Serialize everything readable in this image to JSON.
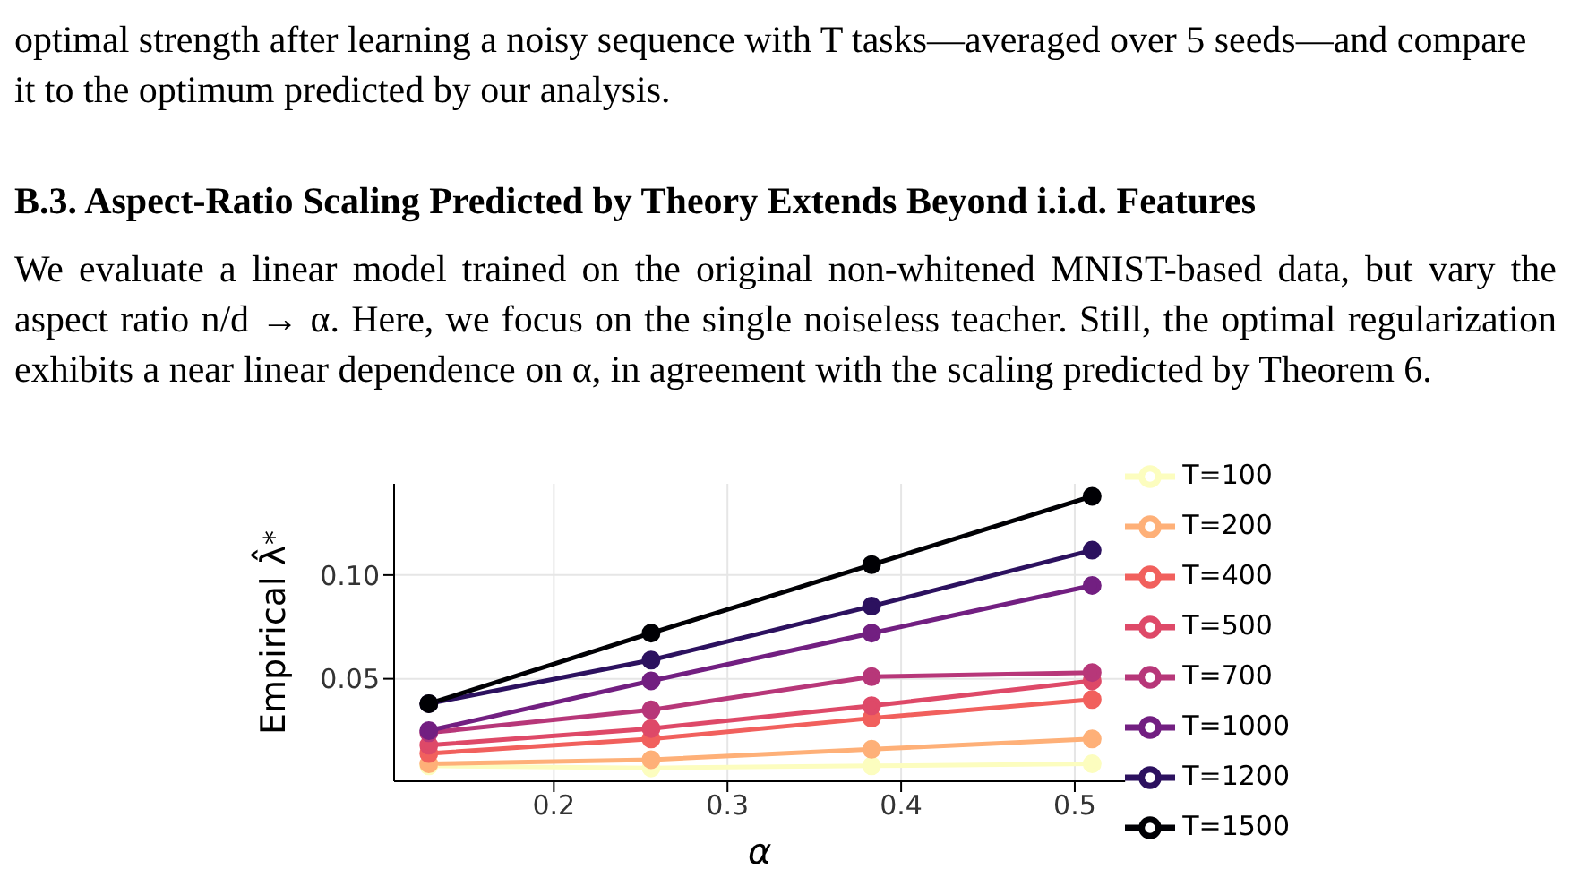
{
  "chart_data": {
    "type": "line",
    "title": "B.3.  Aspect-Ratio Scaling Predicted by Theory Extends Beyond i.i.d. Features",
    "subtitle": "We evaluate a linear model trained on the original non-whitened MNIST-based data, but vary the aspect ratio n/d → α. Here, we focus on the single noiseless teacher. Still, the optimal regularization exhibits a near linear dependence on α, in agreement with the scaling predicted by Theorem 6.",
    "annotations": [
      "optimal strength after learning a noisy sequence with T tasks—averaged over 5 seeds—and compare it to the optimum predicted by our analysis."
    ],
    "xlabel": "α",
    "ylabel": "Empirical λ̂$^{*}$",
    "x": [
      0.128,
      0.256,
      0.383,
      0.51
    ],
    "series": [
      {
        "name": "T=100",
        "color": "#fcfdbf",
        "values": [
          0.008,
          0.007,
          0.008,
          0.009
        ]
      },
      {
        "name": "T=200",
        "color": "#feb078",
        "values": [
          0.009,
          0.011,
          0.016,
          0.021
        ]
      },
      {
        "name": "T=400",
        "color": "#f1605d",
        "values": [
          0.014,
          0.021,
          0.031,
          0.04
        ]
      },
      {
        "name": "T=500",
        "color": "#de4968",
        "values": [
          0.018,
          0.026,
          0.037,
          0.049
        ]
      },
      {
        "name": "T=700",
        "color": "#b73779",
        "values": [
          0.024,
          0.035,
          0.051,
          0.053
        ]
      },
      {
        "name": "T=1000",
        "color": "#721f81",
        "values": [
          0.025,
          0.049,
          0.072,
          0.095
        ]
      },
      {
        "name": "T=1200",
        "color": "#2c115f",
        "values": [
          0.038,
          0.059,
          0.085,
          0.112
        ]
      },
      {
        "name": "T=1500",
        "color": "#000004",
        "values": [
          0.038,
          0.072,
          0.105,
          0.138
        ]
      }
    ],
    "xlim": [
      0.108,
      0.529
    ],
    "ylim": [
      0.0006,
      0.144
    ],
    "xticks": [
      0.2,
      0.3,
      0.4,
      0.5
    ],
    "yticks": [
      {
        "value": 0.05,
        "label": "0.05"
      },
      {
        "value": 0.1,
        "label": "0.10"
      }
    ],
    "grid": true,
    "legend": "right",
    "marker": "circle",
    "line_style": "solid"
  }
}
